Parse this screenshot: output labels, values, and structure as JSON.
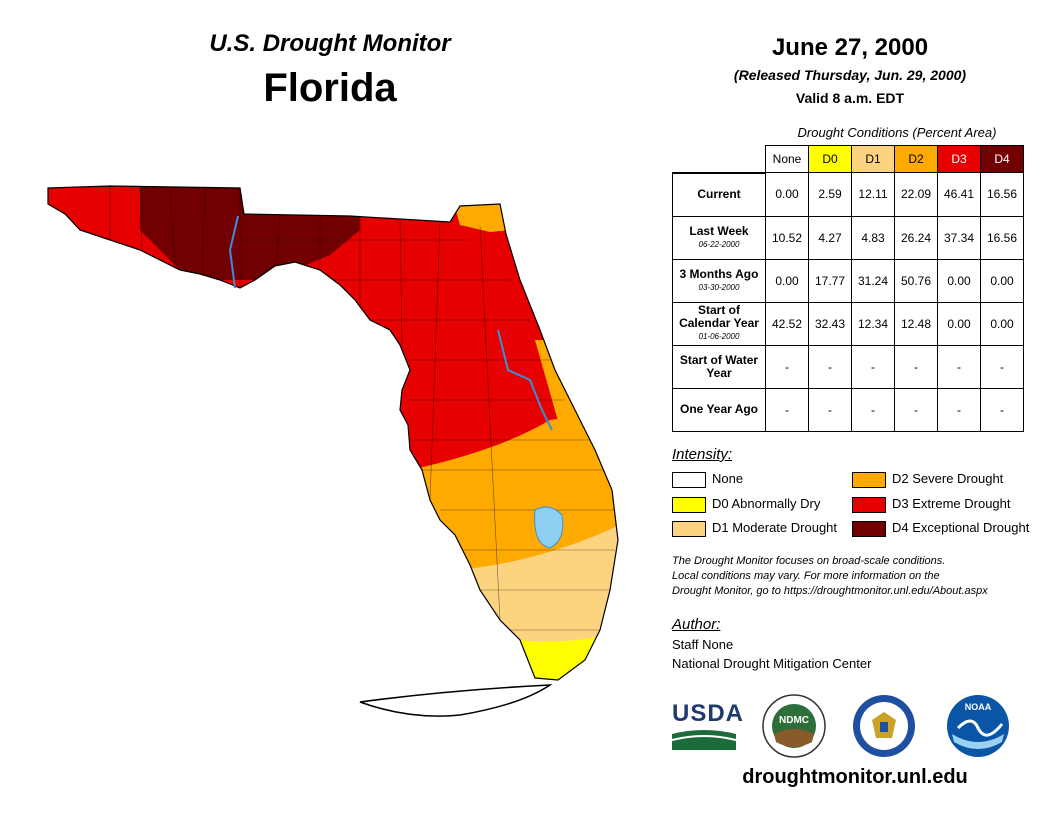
{
  "header": {
    "title": "U.S. Drought Monitor",
    "state": "Florida"
  },
  "date": {
    "main": "June 27, 2000",
    "released": "(Released Thursday, Jun. 29, 2000)",
    "valid": "Valid 8 a.m. EDT"
  },
  "table": {
    "caption": "Drought Conditions (Percent Area)",
    "columns": [
      "None",
      "D0",
      "D1",
      "D2",
      "D3",
      "D4"
    ],
    "column_colors": [
      "#ffffff",
      "#ffff00",
      "#fcd37f",
      "#ffaa00",
      "#e60000",
      "#730000"
    ],
    "rows": [
      {
        "label": "Current",
        "date": "",
        "values": [
          "0.00",
          "2.59",
          "12.11",
          "22.09",
          "46.41",
          "16.56"
        ]
      },
      {
        "label": "Last Week",
        "date": "06-22-2000",
        "values": [
          "10.52",
          "4.27",
          "4.83",
          "26.24",
          "37.34",
          "16.56"
        ]
      },
      {
        "label": "3 Months Ago",
        "date": "03-30-2000",
        "values": [
          "0.00",
          "17.77",
          "31.24",
          "50.76",
          "0.00",
          "0.00"
        ]
      },
      {
        "label": "Start of Calendar Year",
        "date": "01-06-2000",
        "values": [
          "42.52",
          "32.43",
          "12.34",
          "12.48",
          "0.00",
          "0.00"
        ]
      },
      {
        "label": "Start of Water Year",
        "date": "",
        "values": [
          "-",
          "-",
          "-",
          "-",
          "-",
          "-"
        ]
      },
      {
        "label": "One Year Ago",
        "date": "",
        "values": [
          "-",
          "-",
          "-",
          "-",
          "-",
          "-"
        ]
      }
    ]
  },
  "legend": {
    "title": "Intensity:",
    "items": [
      {
        "label": "None",
        "color": "#ffffff"
      },
      {
        "label": "D0 Abnormally Dry",
        "color": "#ffff00"
      },
      {
        "label": "D1 Moderate Drought",
        "color": "#fcd37f"
      },
      {
        "label": "D2 Severe Drought",
        "color": "#ffaa00"
      },
      {
        "label": "D3 Extreme Drought",
        "color": "#e60000"
      },
      {
        "label": "D4 Exceptional Drought",
        "color": "#730000"
      }
    ]
  },
  "disclaimer": {
    "line1": "The Drought Monitor focuses on broad-scale conditions.",
    "line2": "Local conditions may vary. For more information on the",
    "line3": "Drought Monitor, go to https://droughtmonitor.unl.edu/About.aspx"
  },
  "author": {
    "title": "Author:",
    "name": "Staff None",
    "org": "National Drought Mitigation Center"
  },
  "logos": {
    "usda": "USDA",
    "ndmc": "NDMC",
    "noaa": "NOAA"
  },
  "footer": {
    "url": "droughtmonitor.unl.edu"
  },
  "colors": {
    "river": "#3b8fd9",
    "lake": "#8ccff0"
  }
}
